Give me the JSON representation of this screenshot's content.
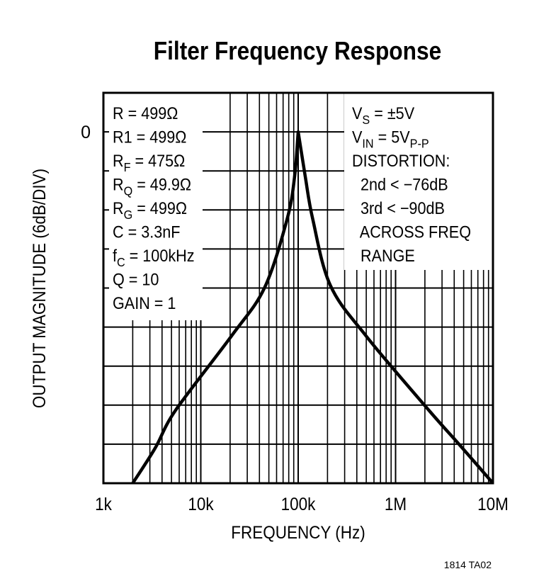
{
  "chart_data": {
    "type": "line",
    "title": "Filter Frequency Response",
    "xlabel": "FREQUENCY (Hz)",
    "ylabel": "OUTPUT MAGNITUDE (6dB/DIV)",
    "x_scale": "log",
    "xlim": [
      1000,
      10000000
    ],
    "ylim": [
      -54,
      6
    ],
    "y_step": 6,
    "grid": true,
    "x_ticks": [
      {
        "value": 1000,
        "label": "1k"
      },
      {
        "value": 10000,
        "label": "10k"
      },
      {
        "value": 100000,
        "label": "100k"
      },
      {
        "value": 1000000,
        "label": "1M"
      },
      {
        "value": 10000000,
        "label": "10M"
      }
    ],
    "y_ticks": [
      {
        "value": 0,
        "label": "0"
      }
    ],
    "series": [
      {
        "color": "#000000",
        "points": [
          [
            2000,
            -54
          ],
          [
            3400,
            -48.6
          ],
          [
            5500,
            -42.8
          ],
          [
            20600,
            -31.4
          ],
          [
            45000,
            -24
          ],
          [
            77000,
            -13.4
          ],
          [
            92000,
            -6.8
          ],
          [
            100000,
            0
          ],
          [
            118000,
            -6.8
          ],
          [
            141000,
            -13.4
          ],
          [
            214000,
            -23.6
          ],
          [
            500000,
            -31.4
          ],
          [
            2200000,
            -42.8
          ],
          [
            4600000,
            -48.2
          ],
          [
            10000000,
            -54
          ]
        ]
      }
    ],
    "annotations_left": [
      {
        "main": "R = 499Ω",
        "sub": "",
        "rest": ""
      },
      {
        "main": "R1 = 499Ω",
        "sub": "",
        "rest": ""
      },
      {
        "main": "R",
        "sub": "F",
        "rest": " = 475Ω"
      },
      {
        "main": "R",
        "sub": "Q",
        "rest": " = 49.9Ω"
      },
      {
        "main": "R",
        "sub": "G",
        "rest": " = 499Ω"
      },
      {
        "main": "C = 3.3nF",
        "sub": "",
        "rest": ""
      },
      {
        "main": "f",
        "sub": "C",
        "rest": " = 100kHz"
      },
      {
        "main": "Q = 10",
        "sub": "",
        "rest": ""
      },
      {
        "main": "GAIN = 1",
        "sub": "",
        "rest": ""
      }
    ],
    "annotations_right": [
      {
        "main": "V",
        "sub": "S",
        "rest": " = ±5V",
        "sub2": ""
      },
      {
        "main": "V",
        "sub": "IN",
        "rest": " = 5V",
        "sub2": "P-P"
      },
      {
        "main": "DISTORTION:",
        "sub": "",
        "rest": "",
        "sub2": ""
      },
      {
        "main": "  2nd < −76dB",
        "sub": "",
        "rest": "",
        "sub2": ""
      },
      {
        "main": "  3rd < −90dB",
        "sub": "",
        "rest": "",
        "sub2": ""
      },
      {
        "main": "  ACROSS FREQ",
        "sub": "",
        "rest": "",
        "sub2": ""
      },
      {
        "main": "  RANGE",
        "sub": "",
        "rest": "",
        "sub2": ""
      }
    ],
    "figure_id": "1814 TA02"
  }
}
